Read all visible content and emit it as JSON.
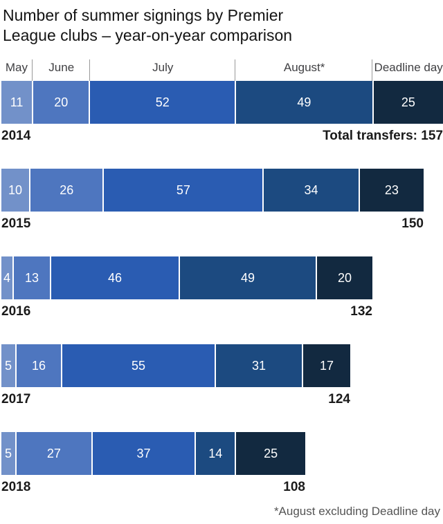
{
  "title_lines": [
    "Number of summer signings by Premier",
    "League clubs – year-on-year comparison"
  ],
  "header": {
    "columns": [
      "May",
      "June",
      "July",
      "August*",
      "Deadline day"
    ]
  },
  "footnote": "*August excluding Deadline day",
  "colors": {
    "May": "#7291c9",
    "June": "#4e76bf",
    "July": "#2a5cb2",
    "August*": "#1c4a80",
    "Deadline day": "#122940"
  },
  "chart_data": {
    "type": "bar",
    "stacked": true,
    "orientation": "horizontal",
    "title": "Number of summer signings by Premier League clubs – year-on-year comparison",
    "categories": [
      "2014",
      "2015",
      "2016",
      "2017",
      "2018"
    ],
    "series": [
      {
        "name": "May",
        "values": [
          11,
          10,
          4,
          5,
          5
        ]
      },
      {
        "name": "June",
        "values": [
          20,
          26,
          13,
          16,
          27
        ]
      },
      {
        "name": "July",
        "values": [
          52,
          57,
          46,
          55,
          37
        ]
      },
      {
        "name": "August*",
        "values": [
          49,
          34,
          49,
          31,
          14
        ]
      },
      {
        "name": "Deadline day",
        "values": [
          25,
          23,
          20,
          17,
          25
        ]
      }
    ],
    "totals": [
      157,
      150,
      132,
      124,
      108
    ],
    "total_labels": [
      "Total transfers: 157",
      "150",
      "132",
      "124",
      "108"
    ],
    "footnote": "*August excluding Deadline day",
    "legend_position": "top",
    "grid": false
  }
}
